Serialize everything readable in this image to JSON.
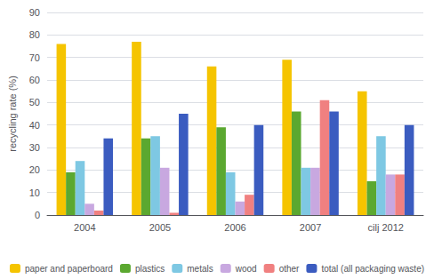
{
  "chart_data": {
    "type": "bar",
    "categories": [
      "2004",
      "2005",
      "2006",
      "2007",
      "cilj 2012"
    ],
    "series": [
      {
        "name": "paper and paperboard",
        "color": "#F5C400",
        "values": [
          76,
          77,
          66,
          69,
          55
        ]
      },
      {
        "name": "plastics",
        "color": "#5BA830",
        "values": [
          19,
          34,
          39,
          46,
          15
        ]
      },
      {
        "name": "metals",
        "color": "#7EC8E3",
        "values": [
          24,
          35,
          19,
          21,
          35
        ]
      },
      {
        "name": "wood",
        "color": "#C8A8E0",
        "values": [
          5,
          21,
          6,
          21,
          18
        ]
      },
      {
        "name": "other",
        "color": "#F08080",
        "values": [
          2,
          1,
          9,
          51,
          18
        ]
      },
      {
        "name": "total (all packaging waste)",
        "color": "#3B5CC0",
        "values": [
          34,
          45,
          40,
          46,
          40
        ]
      }
    ],
    "ylabel": "recycling rate (%)",
    "ylim": [
      0,
      90
    ],
    "yticks": [
      0,
      10,
      20,
      30,
      40,
      50,
      60,
      70,
      80,
      90
    ],
    "grid": true,
    "legend": "bottom"
  }
}
